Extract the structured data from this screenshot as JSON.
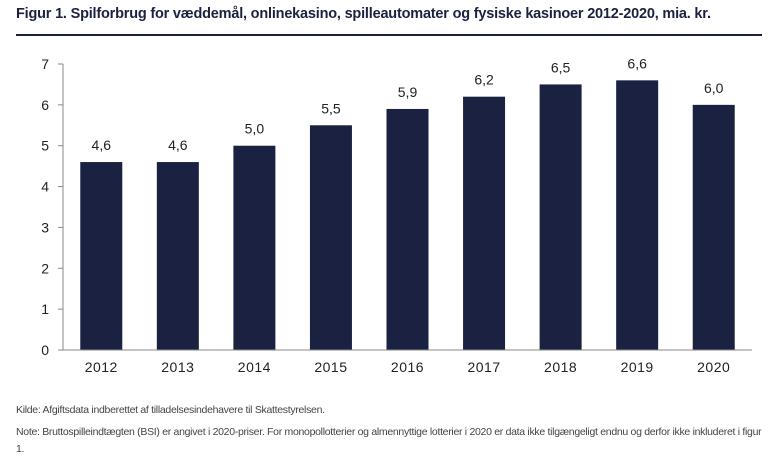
{
  "figure": {
    "title": "Figur 1. Spilforbrug for væddemål, onlinekasino, spilleautomater og fysiske kasinoer 2012-2020, mia. kr.",
    "source": "Kilde: Afgiftsdata indberettet af tilladelsesindehavere til Skattestyrelsen.",
    "note": "Note: Bruttospilleindtægten (BSI) er angivet i 2020-priser. For monopollotterier og almennyttige lotterier i 2020 er data ikke tilgængeligt endnu og derfor ikke inkluderet i figur 1."
  },
  "chart_data": {
    "type": "bar",
    "title": "Figur 1. Spilforbrug for væddemål, onlinekasino, spilleautomater og fysiske kasinoer 2012-2020, mia. kr.",
    "categories": [
      "2012",
      "2013",
      "2014",
      "2015",
      "2016",
      "2017",
      "2018",
      "2019",
      "2020"
    ],
    "values": [
      4.6,
      4.6,
      5.0,
      5.5,
      5.9,
      6.2,
      6.5,
      6.6,
      6.0
    ],
    "value_labels": [
      "4,6",
      "4,6",
      "5,0",
      "5,5",
      "5,9",
      "6,2",
      "6,5",
      "6,6",
      "6,0"
    ],
    "yticks": [
      "0",
      "1",
      "2",
      "3",
      "4",
      "5",
      "6",
      "7"
    ],
    "ylim": [
      0,
      7
    ],
    "grid": false,
    "legend": "none",
    "bar_color": "#1b2140"
  }
}
